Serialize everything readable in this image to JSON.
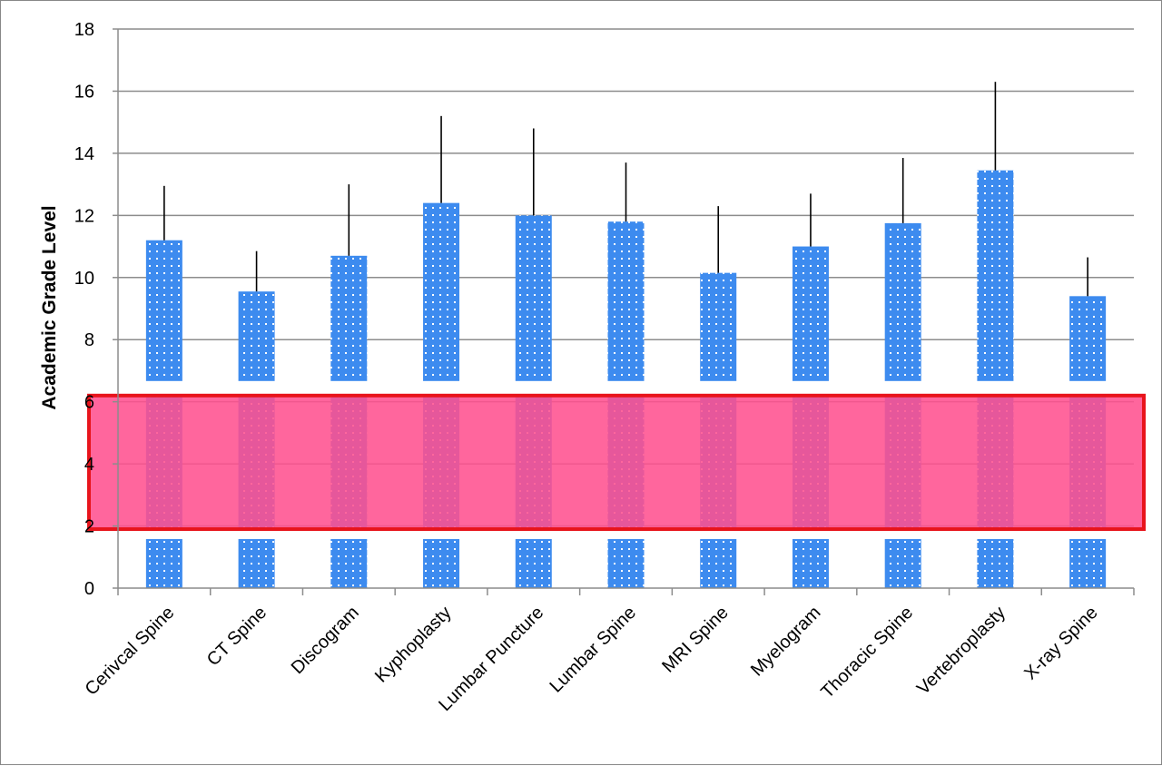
{
  "chart_data": {
    "type": "bar",
    "title": "",
    "xlabel": "",
    "ylabel": "Academic Grade Level",
    "ylim": [
      0,
      18
    ],
    "yticks": [
      0,
      2,
      4,
      6,
      8,
      10,
      12,
      14,
      16,
      18
    ],
    "grid": true,
    "legend": "none",
    "categories": [
      "Cerivcal Spine",
      "CT Spine",
      "Discogram",
      "Kyphoplasty",
      "Lumbar Puncture",
      "Lumbar Spine",
      "MRI Spine",
      "Myelogram",
      "Thoracic Spine",
      "Vertebroplasty",
      "X-ray Spine"
    ],
    "series": [
      {
        "values": [
          11.2,
          9.55,
          10.7,
          12.4,
          12.0,
          11.8,
          10.15,
          11.0,
          11.75,
          13.45,
          9.4
        ],
        "error_plus": [
          1.75,
          1.3,
          2.3,
          2.8,
          2.8,
          1.9,
          2.15,
          1.7,
          2.1,
          2.85,
          1.25
        ]
      }
    ],
    "highlight_band": {
      "y_range": [
        1.9,
        6.2
      ],
      "fill": "#ff4f8f",
      "border": "#e8141c"
    },
    "bar_color": "#3d8bef",
    "bar_dot_color": "#ffffff"
  }
}
